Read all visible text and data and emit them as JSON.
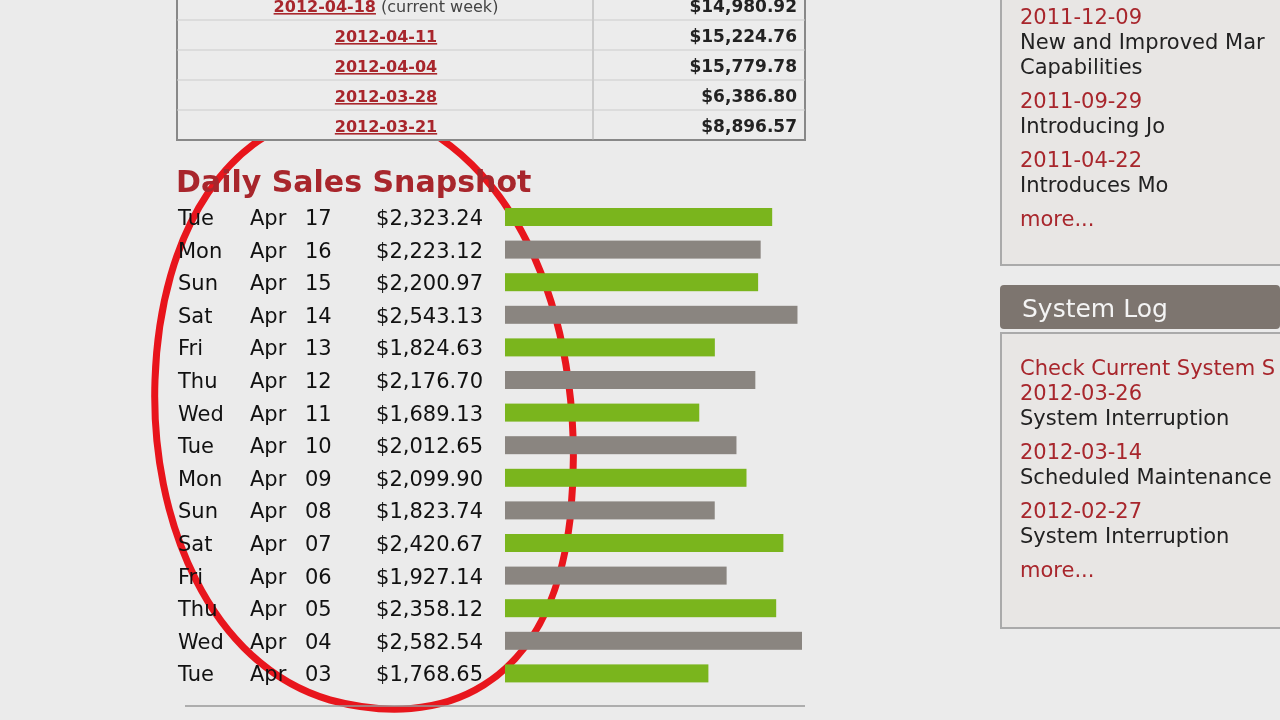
{
  "chart_data": [
    {
      "type": "bar",
      "orientation": "horizontal",
      "title": "Daily Sales Snapshot",
      "categories": [
        "Tue Apr 17",
        "Mon Apr 16",
        "Sun Apr 15",
        "Sat Apr 14",
        "Fri Apr 13",
        "Thu Apr 12",
        "Wed Apr 11",
        "Tue Apr 10",
        "Mon Apr 09",
        "Sun Apr 08",
        "Sat Apr 07",
        "Fri Apr 06",
        "Thu Apr 05",
        "Wed Apr 04",
        "Tue Apr 03"
      ],
      "values": [
        2323.24,
        2223.12,
        2200.97,
        2543.13,
        1824.63,
        2176.7,
        1689.13,
        2012.65,
        2099.9,
        1823.74,
        2420.67,
        1927.14,
        2358.12,
        2582.54,
        1768.65
      ],
      "value_labels": [
        "$2,323.24",
        "$2,223.12",
        "$2,200.97",
        "$2,543.13",
        "$1,824.63",
        "$2,176.70",
        "$1,689.13",
        "$2,012.65",
        "$2,099.90",
        "$1,823.74",
        "$2,420.67",
        "$1,927.14",
        "$2,358.12",
        "$2,582.54",
        "$1,768.65"
      ],
      "colors": [
        "#7ab51d",
        "#8a8580",
        "#7ab51d",
        "#8a8580",
        "#7ab51d",
        "#8a8580",
        "#7ab51d",
        "#8a8580",
        "#7ab51d",
        "#8a8580",
        "#7ab51d",
        "#8a8580",
        "#7ab51d",
        "#8a8580",
        "#7ab51d"
      ]
    },
    {
      "type": "other",
      "annotations": [
        "2012-04-18 (current week)",
        "$14,980.92",
        "2012-04-11",
        "$15,224.76",
        "2012-04-04",
        "$15,779.78",
        "2012-03-28",
        "$6,386.80",
        "2012-03-21",
        "$8,896.57"
      ]
    },
    {
      "type": "other",
      "annotations": [
        "2011-12-09",
        "New and Improved Mar",
        "Capabilities",
        "2011-09-29",
        "Introducing Jo",
        "2011-04-22",
        "Introduces Mo",
        "more..."
      ]
    },
    {
      "type": "other",
      "title": "System Log",
      "annotations": [
        "Check Current System S",
        "2012-03-26",
        "System Interruption",
        "2012-03-14",
        "Scheduled Maintenance",
        "2012-02-27",
        "System Interruption",
        "more..."
      ]
    }
  ]
}
